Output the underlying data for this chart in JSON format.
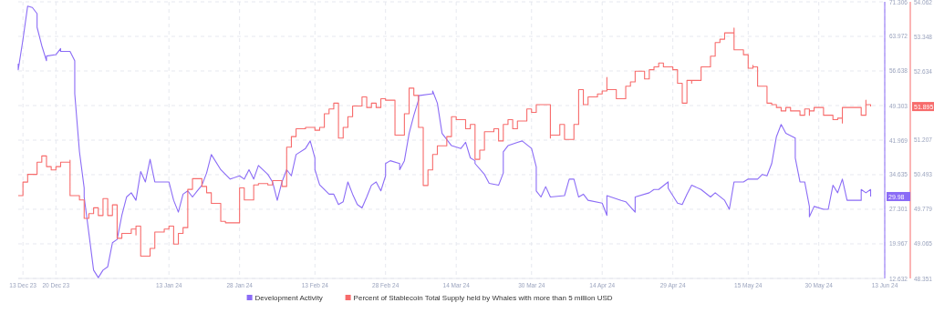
{
  "chart_data": {
    "type": "line",
    "xlim": [
      "2023-12-12",
      "2024-06-13"
    ],
    "xticks": [
      {
        "value": "2023-12-13",
        "label": "13 Dec 23"
      },
      {
        "value": "2023-12-20",
        "label": "20 Dec 23"
      },
      {
        "value": "2024-01-13",
        "label": "13 Jan 24"
      },
      {
        "value": "2024-01-28",
        "label": "28 Jan 24"
      },
      {
        "value": "2024-02-13",
        "label": "13 Feb 24"
      },
      {
        "value": "2024-02-28",
        "label": "28 Feb 24"
      },
      {
        "value": "2024-03-14",
        "label": "14 Mar 24"
      },
      {
        "value": "2024-03-30",
        "label": "30 Mar 24"
      },
      {
        "value": "2024-04-14",
        "label": "14 Apr 24"
      },
      {
        "value": "2024-04-29",
        "label": "29 Apr 24"
      },
      {
        "value": "2024-05-15",
        "label": "15 May 24"
      },
      {
        "value": "2024-05-30",
        "label": "30 May 24"
      },
      {
        "value": "2024-06-13",
        "label": "13 Jun 24"
      }
    ],
    "ylim": [
      12.632,
      71.306
    ],
    "yticks": [
      12.632,
      19.967,
      27.301,
      34.635,
      41.969,
      49.303,
      56.638,
      63.972,
      71.306
    ],
    "y2lim": [
      48.351,
      54.062
    ],
    "y2ticks": [
      48.351,
      49.065,
      49.779,
      50.493,
      51.207,
      52.634,
      53.348,
      54.062
    ],
    "grid": true,
    "legend": "bottom",
    "annotations": [
      "29.98",
      "51.895"
    ],
    "series": [
      {
        "name": "Development Activity",
        "color": "#8b6cf6",
        "x": [
          "2023-12-12",
          "2023-12-12",
          "2023-12-13",
          "2023-12-14",
          "2023-12-15",
          "2023-12-16",
          "2023-12-16",
          "2023-12-17",
          "2023-12-18",
          "2023-12-18",
          "2023-12-20",
          "2023-12-21",
          "2023-12-21",
          "2023-12-23",
          "2023-12-24",
          "2023-12-24",
          "2023-12-25",
          "2023-12-26",
          "2023-12-26",
          "2023-12-27",
          "2023-12-28",
          "2023-12-29",
          "2023-12-29",
          "2023-12-30",
          "2023-12-31",
          "2024-01-01",
          "2024-01-02",
          "2024-01-03",
          "2024-01-04",
          "2024-01-05",
          "2024-01-06",
          "2024-01-07",
          "2024-01-08",
          "2024-01-09",
          "2024-01-10",
          "2024-01-13",
          "2024-01-14",
          "2024-01-15",
          "2024-01-16",
          "2024-01-17",
          "2024-01-18",
          "2024-01-19",
          "2024-01-20",
          "2024-01-21",
          "2024-01-22",
          "2024-01-24",
          "2024-01-26",
          "2024-01-28",
          "2024-01-29",
          "2024-01-30",
          "2024-01-31",
          "2024-02-01",
          "2024-02-03",
          "2024-02-04",
          "2024-02-05",
          "2024-02-06",
          "2024-02-07",
          "2024-02-08",
          "2024-02-09",
          "2024-02-11",
          "2024-02-12",
          "2024-02-13",
          "2024-02-13",
          "2024-02-14",
          "2024-02-16",
          "2024-02-17",
          "2024-02-18",
          "2024-02-19",
          "2024-02-20",
          "2024-02-21",
          "2024-02-22",
          "2024-02-23",
          "2024-02-24",
          "2024-02-25",
          "2024-02-26",
          "2024-02-27",
          "2024-02-28",
          "2024-02-28",
          "2024-02-29",
          "2024-03-02",
          "2024-03-02",
          "2024-03-03",
          "2024-03-04",
          "2024-03-05",
          "2024-03-06",
          "2024-03-06",
          "2024-03-09",
          "2024-03-09",
          "2024-03-10",
          "2024-03-11",
          "2024-03-12",
          "2024-03-13",
          "2024-03-15",
          "2024-03-16",
          "2024-03-17",
          "2024-03-18",
          "2024-03-18",
          "2024-03-20",
          "2024-03-21",
          "2024-03-23",
          "2024-03-24",
          "2024-03-24",
          "2024-03-25",
          "2024-03-27",
          "2024-03-28",
          "2024-03-30",
          "2024-03-31",
          "2024-03-31",
          "2024-04-01",
          "2024-04-02",
          "2024-04-03",
          "2024-04-06",
          "2024-04-07",
          "2024-04-08",
          "2024-04-09",
          "2024-04-10",
          "2024-04-11",
          "2024-04-14",
          "2024-04-15",
          "2024-04-15",
          "2024-04-18",
          "2024-04-19",
          "2024-04-21",
          "2024-04-21",
          "2024-04-24",
          "2024-04-25",
          "2024-04-26",
          "2024-04-28",
          "2024-04-28",
          "2024-04-30",
          "2024-05-01",
          "2024-05-02",
          "2024-05-03",
          "2024-05-05",
          "2024-05-07",
          "2024-05-08",
          "2024-05-10",
          "2024-05-11",
          "2024-05-12",
          "2024-05-14",
          "2024-05-15",
          "2024-05-17",
          "2024-05-18",
          "2024-05-19",
          "2024-05-20",
          "2024-05-21",
          "2024-05-22",
          "2024-05-23",
          "2024-05-25",
          "2024-05-25",
          "2024-05-26",
          "2024-05-27",
          "2024-05-28",
          "2024-05-28",
          "2024-05-29",
          "2024-05-31",
          "2024-06-01",
          "2024-06-02",
          "2024-06-03",
          "2024-06-04",
          "2024-06-05",
          "2024-06-08",
          "2024-06-08",
          "2024-06-09",
          "2024-06-10",
          "2024-06-10"
        ],
        "values": [
          58.2,
          56.9,
          63.3,
          70.4,
          70.1,
          68.8,
          65.9,
          62.0,
          58.8,
          59.8,
          60.1,
          61.4,
          60.8,
          60.8,
          58.8,
          51.8,
          39.5,
          31.8,
          29.9,
          22.2,
          14.4,
          12.8,
          12.8,
          14.4,
          15.1,
          20.2,
          20.9,
          26.0,
          29.9,
          30.8,
          29.2,
          35.3,
          33.1,
          37.9,
          33.1,
          33.1,
          29.2,
          26.7,
          30.5,
          31.2,
          29.9,
          31.2,
          32.4,
          35.0,
          38.9,
          35.7,
          33.7,
          34.4,
          33.7,
          35.7,
          33.7,
          36.6,
          34.7,
          33.1,
          29.2,
          33.1,
          35.7,
          34.4,
          38.9,
          40.2,
          41.8,
          38.2,
          35.7,
          32.5,
          30.5,
          30.5,
          28.3,
          28.9,
          33.1,
          30.5,
          28.3,
          27.6,
          29.9,
          32.4,
          33.1,
          31.2,
          34.4,
          37.0,
          37.6,
          37.0,
          35.7,
          37.6,
          43.4,
          47.2,
          50.5,
          51.4,
          51.8,
          52.4,
          49.8,
          43.4,
          42.1,
          40.8,
          40.2,
          41.5,
          38.2,
          37.6,
          37.0,
          34.7,
          32.8,
          32.4,
          35.0,
          39.5,
          40.8,
          41.5,
          41.8,
          40.2,
          36.3,
          31.2,
          29.9,
          32.1,
          29.9,
          30.2,
          33.7,
          33.7,
          29.9,
          30.5,
          29.2,
          28.6,
          26.0,
          30.2,
          29.2,
          28.9,
          26.7,
          29.9,
          30.8,
          31.5,
          31.5,
          33.1,
          31.8,
          28.6,
          28.3,
          30.5,
          32.4,
          31.5,
          29.9,
          30.8,
          29.2,
          27.3,
          33.1,
          33.1,
          33.7,
          33.7,
          34.7,
          34.4,
          37.0,
          42.7,
          45.3,
          43.4,
          42.4,
          38.2,
          33.1,
          33.1,
          27.9,
          25.7,
          27.9,
          27.3,
          27.3,
          32.4,
          30.8,
          33.7,
          29.2,
          29.2,
          31.5,
          30.8,
          31.5,
          30.0
        ]
      },
      {
        "name": "Percent of Stablecoin Total Supply held by Whales with more than 5 million USD",
        "type": "step",
        "axis": "y2",
        "color": "#f76b6b",
        "x": [
          "2023-12-12",
          "2023-12-13",
          "2023-12-14",
          "2023-12-16",
          "2023-12-17",
          "2023-12-18",
          "2023-12-19",
          "2023-12-20",
          "2023-12-21",
          "2023-12-23",
          "2023-12-23",
          "2023-12-25",
          "2023-12-26",
          "2023-12-27",
          "2023-12-28",
          "2023-12-29",
          "2023-12-30",
          "2023-12-31",
          "2024-01-01",
          "2024-01-02",
          "2024-01-03",
          "2024-01-05",
          "2024-01-06",
          "2024-01-06",
          "2024-01-07",
          "2024-01-09",
          "2024-01-10",
          "2024-01-12",
          "2024-01-13",
          "2024-01-14",
          "2024-01-15",
          "2024-01-16",
          "2024-01-17",
          "2024-01-18",
          "2024-01-20",
          "2024-01-21",
          "2024-01-22",
          "2024-01-24",
          "2024-01-25",
          "2024-01-28",
          "2024-01-29",
          "2024-01-31",
          "2024-02-01",
          "2024-02-03",
          "2024-02-04",
          "2024-02-06",
          "2024-02-07",
          "2024-02-07",
          "2024-02-08",
          "2024-02-09",
          "2024-02-11",
          "2024-02-13",
          "2024-02-14",
          "2024-02-15",
          "2024-02-16",
          "2024-02-17",
          "2024-02-18",
          "2024-02-19",
          "2024-02-20",
          "2024-02-21",
          "2024-02-23",
          "2024-02-24",
          "2024-02-25",
          "2024-02-26",
          "2024-02-27",
          "2024-02-28",
          "2024-03-01",
          "2024-03-03",
          "2024-03-04",
          "2024-03-05",
          "2024-03-06",
          "2024-03-07",
          "2024-03-08",
          "2024-03-09",
          "2024-03-10",
          "2024-03-12",
          "2024-03-13",
          "2024-03-14",
          "2024-03-16",
          "2024-03-17",
          "2024-03-18",
          "2024-03-19",
          "2024-03-20",
          "2024-03-22",
          "2024-03-23",
          "2024-03-24",
          "2024-03-25",
          "2024-03-26",
          "2024-03-27",
          "2024-03-29",
          "2024-03-30",
          "2024-03-31",
          "2024-04-03",
          "2024-04-03",
          "2024-04-05",
          "2024-04-06",
          "2024-04-08",
          "2024-04-09",
          "2024-04-10",
          "2024-04-11",
          "2024-04-13",
          "2024-04-14",
          "2024-04-15",
          "2024-04-15",
          "2024-04-17",
          "2024-04-19",
          "2024-04-20",
          "2024-04-21",
          "2024-04-21",
          "2024-04-23",
          "2024-04-24",
          "2024-04-25",
          "2024-04-26",
          "2024-04-27",
          "2024-04-29",
          "2024-04-30",
          "2024-05-01",
          "2024-05-02",
          "2024-05-03",
          "2024-05-03",
          "2024-05-05",
          "2024-05-05",
          "2024-05-07",
          "2024-05-08",
          "2024-05-09",
          "2024-05-10",
          "2024-05-10",
          "2024-05-12",
          "2024-05-12",
          "2024-05-14",
          "2024-05-15",
          "2024-05-16",
          "2024-05-16",
          "2024-05-17",
          "2024-05-19",
          "2024-05-20",
          "2024-05-21",
          "2024-05-22",
          "2024-05-23",
          "2024-05-23",
          "2024-05-24",
          "2024-05-26",
          "2024-05-27",
          "2024-05-28",
          "2024-05-28",
          "2024-05-29",
          "2024-05-31",
          "2024-06-02",
          "2024-06-03",
          "2024-06-04",
          "2024-06-04",
          "2024-06-08",
          "2024-06-09",
          "2024-06-09",
          "2024-06-10"
        ],
        "values": [
          50.06,
          50.34,
          50.5,
          50.75,
          50.88,
          50.66,
          50.59,
          50.66,
          50.75,
          50.79,
          50.06,
          49.97,
          49.59,
          49.69,
          49.81,
          49.65,
          50.0,
          49.65,
          49.87,
          49.18,
          49.28,
          49.37,
          49.25,
          49.43,
          48.81,
          48.97,
          49.31,
          49.37,
          49.43,
          49.06,
          49.28,
          49.4,
          50.19,
          50.41,
          50.25,
          50.12,
          49.9,
          49.53,
          49.5,
          50.22,
          49.97,
          50.28,
          50.31,
          50.28,
          50.37,
          50.25,
          50.47,
          51.06,
          51.28,
          51.44,
          51.47,
          51.41,
          51.47,
          51.75,
          51.85,
          51.97,
          51.25,
          51.47,
          51.69,
          51.91,
          52.1,
          51.88,
          51.97,
          51.88,
          52.06,
          52.03,
          51.31,
          51.75,
          52.28,
          52.13,
          51.47,
          50.27,
          50.59,
          50.91,
          51.09,
          51.28,
          51.69,
          51.63,
          51.44,
          51.53,
          50.81,
          51.0,
          51.38,
          51.44,
          51.19,
          51.53,
          51.63,
          51.44,
          51.6,
          51.85,
          51.78,
          51.94,
          51.25,
          51.31,
          51.53,
          51.22,
          51.53,
          52.25,
          51.94,
          52.1,
          52.16,
          52.22,
          52.5,
          52.25,
          52.06,
          52.32,
          52.41,
          52.46,
          52.63,
          52.47,
          52.66,
          52.72,
          52.8,
          52.72,
          52.66,
          52.38,
          51.97,
          52.44,
          52.38,
          52.44,
          52.57,
          52.72,
          52.94,
          53.22,
          53.29,
          53.35,
          53.42,
          53.52,
          53.07,
          52.97,
          52.69,
          52.75,
          52.72,
          52.32,
          51.97,
          51.94,
          51.88,
          51.81,
          51.88,
          51.88,
          51.81,
          51.72,
          51.85,
          51.72,
          51.81,
          51.88,
          51.72,
          51.63,
          51.66,
          51.56,
          51.88,
          51.72,
          52.03,
          51.94,
          51.9
        ]
      }
    ]
  }
}
